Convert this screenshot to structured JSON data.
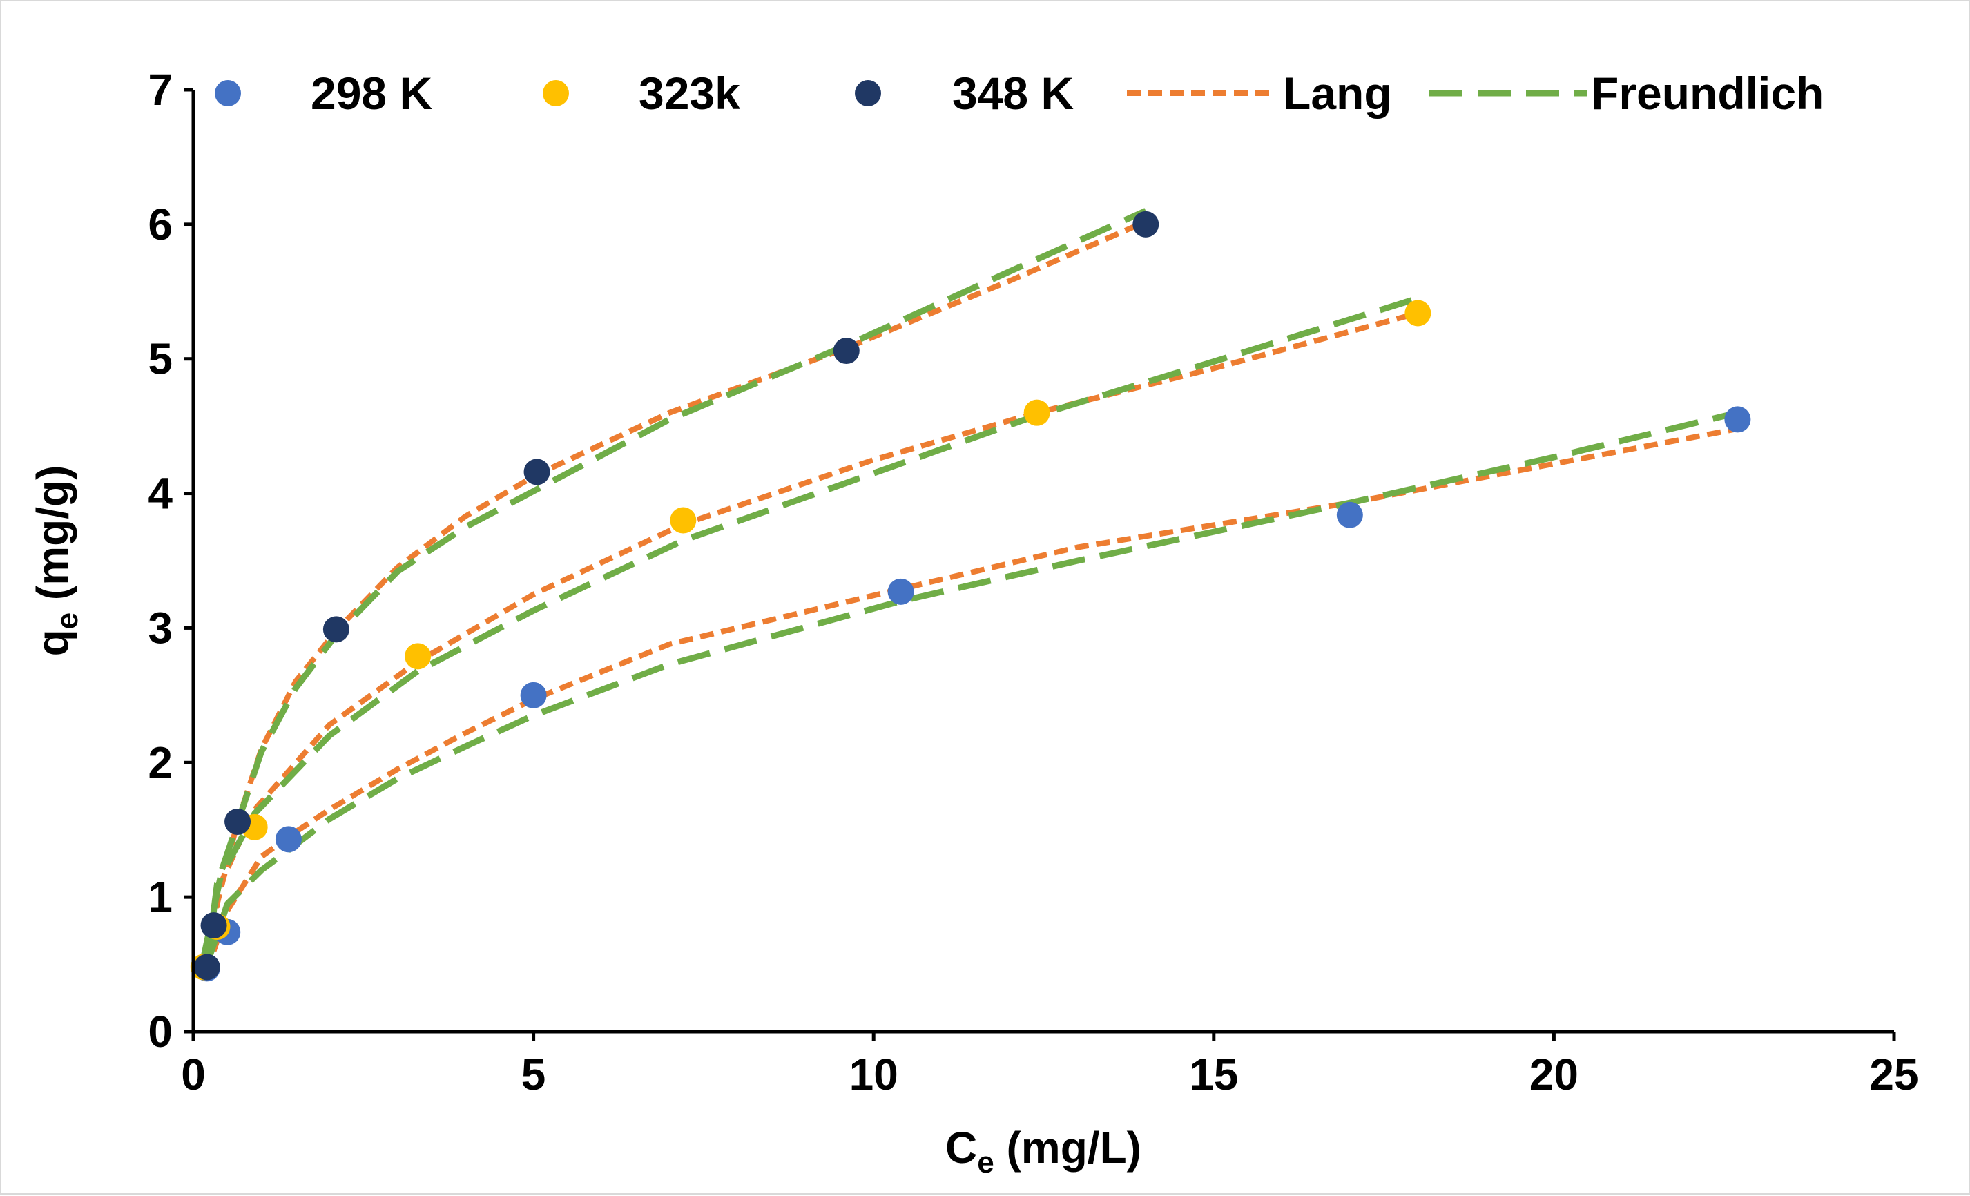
{
  "chart_data": {
    "type": "scatter",
    "title": "",
    "xlabel": {
      "main": "C",
      "sub": "e",
      "rest": " (mg/L)"
    },
    "ylabel": {
      "main": "q",
      "sub": "e",
      "rest": " (mg/g)"
    },
    "xlim": [
      0,
      25
    ],
    "ylim": [
      0,
      7
    ],
    "xticks": [
      0,
      5,
      10,
      15,
      20,
      25
    ],
    "yticks": [
      0,
      1,
      2,
      3,
      4,
      5,
      6,
      7
    ],
    "grid": false,
    "legend_position": "top",
    "series": [
      {
        "name": "298 K",
        "kind": "points",
        "color": "#4472C4",
        "x": [
          0.2,
          0.5,
          1.4,
          5.0,
          10.4,
          17.0,
          22.7
        ],
        "y": [
          0.47,
          0.74,
          1.43,
          2.5,
          3.27,
          3.84,
          4.55
        ]
      },
      {
        "name": "323k",
        "kind": "points",
        "color": "#FFC000",
        "x": [
          0.15,
          0.35,
          0.9,
          3.3,
          7.2,
          12.4,
          18.0
        ],
        "y": [
          0.48,
          0.78,
          1.52,
          2.79,
          3.8,
          4.6,
          5.34
        ]
      },
      {
        "name": "348 K",
        "kind": "points",
        "color": "#203864",
        "x": [
          0.2,
          0.3,
          0.65,
          2.1,
          5.05,
          9.6,
          14.0
        ],
        "y": [
          0.48,
          0.79,
          1.56,
          2.99,
          4.16,
          5.06,
          6.0
        ]
      },
      {
        "name": "Lang",
        "kind": "line",
        "style": "short-dash",
        "color": "#ED7D31",
        "curves": [
          {
            "x": [
              0.2,
              0.5,
              1.0,
              1.4,
              2.0,
              3.0,
              4.0,
              5.0,
              7.0,
              10.4,
              13.0,
              17.0,
              20.0,
              22.7
            ],
            "y": [
              0.45,
              0.9,
              1.3,
              1.45,
              1.65,
              1.95,
              2.22,
              2.47,
              2.88,
              3.29,
              3.6,
              3.93,
              4.22,
              4.48
            ]
          },
          {
            "x": [
              0.15,
              0.4,
              0.9,
              2.0,
              3.3,
              5.0,
              7.2,
              10.0,
              12.4,
              15.0,
              18.0
            ],
            "y": [
              0.45,
              1.1,
              1.65,
              2.28,
              2.75,
              3.25,
              3.77,
              4.25,
              4.6,
              4.93,
              5.34
            ]
          },
          {
            "x": [
              0.2,
              0.35,
              0.65,
              1.0,
              1.5,
              2.1,
              3.0,
              4.0,
              5.05,
              7.0,
              9.6,
              12.0,
              14.0
            ],
            "y": [
              0.45,
              0.95,
              1.56,
              2.1,
              2.6,
              2.98,
              3.45,
              3.83,
              4.14,
              4.6,
              5.08,
              5.58,
              6.02
            ]
          }
        ]
      },
      {
        "name": "Freundlich",
        "kind": "line",
        "style": "long-dash",
        "color": "#70AD47",
        "curves": [
          {
            "x": [
              0.2,
              0.5,
              1.0,
              1.4,
              2.0,
              3.0,
              4.0,
              5.0,
              7.0,
              10.4,
              13.0,
              17.0,
              20.0,
              22.7
            ],
            "y": [
              0.5,
              0.95,
              1.2,
              1.35,
              1.58,
              1.88,
              2.12,
              2.35,
              2.73,
              3.2,
              3.5,
              3.93,
              4.27,
              4.6
            ]
          },
          {
            "x": [
              0.15,
              0.4,
              0.9,
              2.0,
              3.3,
              5.0,
              7.2,
              10.0,
              12.4,
              15.0,
              18.0
            ],
            "y": [
              0.55,
              1.15,
              1.62,
              2.2,
              2.68,
              3.13,
              3.65,
              4.15,
              4.58,
              4.98,
              5.45
            ]
          },
          {
            "x": [
              0.2,
              0.35,
              0.65,
              1.0,
              1.5,
              2.1,
              3.0,
              4.0,
              5.05,
              7.0,
              9.6,
              12.0,
              14.0
            ],
            "y": [
              0.5,
              1.1,
              1.55,
              2.08,
              2.55,
              2.95,
              3.42,
              3.75,
              4.03,
              4.55,
              5.1,
              5.65,
              6.1
            ]
          }
        ]
      }
    ]
  }
}
